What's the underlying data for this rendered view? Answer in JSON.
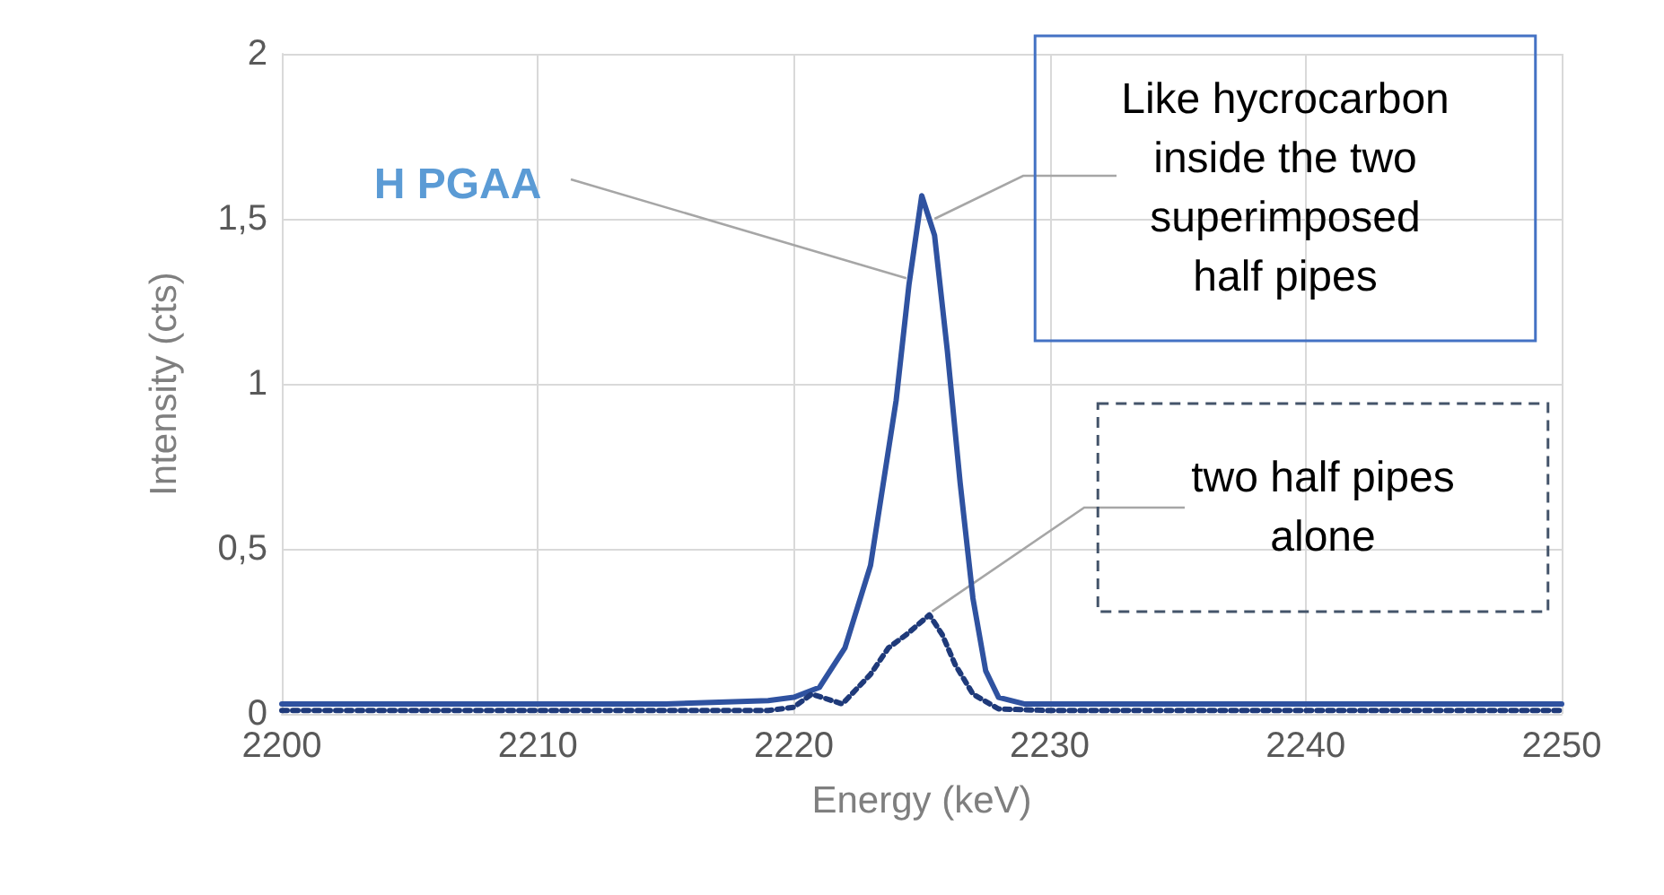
{
  "chart_data": {
    "type": "line",
    "xlabel": "Energy (keV)",
    "ylabel": "Intensity (cts)",
    "xlim": [
      2200,
      2250
    ],
    "xticks": [
      2200,
      2210,
      2220,
      2230,
      2240,
      2250
    ],
    "ylim": [
      0,
      2
    ],
    "yticks": [
      0,
      {
        "value": 0.5,
        "label": "0,5"
      },
      1,
      {
        "value": 1.5,
        "label": "1,5"
      },
      2
    ],
    "grid": true,
    "marker": "none",
    "series": [
      {
        "color": "#2f52a0",
        "line_style": "solid",
        "x": [
          2200,
          2205,
          2210,
          2215,
          2219,
          2220,
          2221,
          2222,
          2223,
          2224,
          2224.5,
          2225,
          2225.5,
          2226,
          2226.5,
          2227,
          2227.5,
          2228,
          2229,
          2235,
          2240,
          2245,
          2250
        ],
        "values": [
          0.03,
          0.03,
          0.03,
          0.03,
          0.04,
          0.05,
          0.08,
          0.2,
          0.45,
          0.95,
          1.3,
          1.57,
          1.45,
          1.1,
          0.7,
          0.35,
          0.13,
          0.05,
          0.03,
          0.03,
          0.03,
          0.03,
          0.03
        ]
      },
      {
        "color": "#1f3a7a",
        "line_style": "dotted",
        "x": [
          2200,
          2205,
          2210,
          2215,
          2219,
          2220,
          2220.7,
          2221.9,
          2223,
          2223.7,
          2224.4,
          2225.3,
          2225.8,
          2226.3,
          2227,
          2228,
          2230,
          2235,
          2240,
          2245,
          2250
        ],
        "values": [
          0.01,
          0.01,
          0.01,
          0.01,
          0.01,
          0.02,
          0.06,
          0.03,
          0.12,
          0.2,
          0.24,
          0.3,
          0.24,
          0.15,
          0.06,
          0.015,
          0.01,
          0.01,
          0.01,
          0.01,
          0.01
        ]
      }
    ],
    "annotations": [
      {
        "text": "H PGAA",
        "x": 2224.4,
        "y": 1.32
      },
      {
        "text": "Like hycrocarbon\ninside the two\nsuperimposed\nhalf pipes",
        "x": 2225.5,
        "y": 1.5
      },
      {
        "text": "two half pipes\nalone",
        "x": 2225.4,
        "y": 0.31
      }
    ]
  }
}
